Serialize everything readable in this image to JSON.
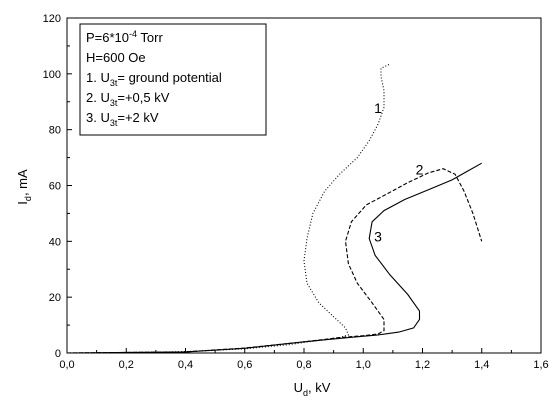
{
  "chart_data": {
    "type": "line",
    "xlabel_main": "U",
    "xlabel_sub": "d",
    "xlabel_unit": ", kV",
    "ylabel_main": "I",
    "ylabel_sub": "d",
    "ylabel_unit": ", mA",
    "xlim": [
      0,
      1.6
    ],
    "ylim": [
      0,
      120
    ],
    "x_ticks": [
      "0,0",
      "0,2",
      "0,4",
      "0,6",
      "0,8",
      "1,0",
      "1,2",
      "1,4",
      "1,6"
    ],
    "x_tick_values": [
      0,
      0.2,
      0.4,
      0.6,
      0.8,
      1.0,
      1.2,
      1.4,
      1.6
    ],
    "y_ticks": [
      "0",
      "20",
      "40",
      "60",
      "80",
      "100",
      "120"
    ],
    "y_tick_values": [
      0,
      20,
      40,
      60,
      80,
      100,
      120
    ],
    "grid": false,
    "legend_position": "top-left",
    "legend": {
      "line1_prefix": "P=6*10",
      "line1_exp": "-4",
      "line1_suffix": " Torr",
      "line2": "H=600 Oe",
      "line3_prefix": "1. U",
      "line3_sub": "3t",
      "line3_suffix": "= ground potential",
      "line4_prefix": "2. U",
      "line4_sub": "3t",
      "line4_suffix": "=+0,5 kV",
      "line5_prefix": "3. U",
      "line5_sub": "3t",
      "line5_suffix": "=+2 kV"
    },
    "series": [
      {
        "label": "1",
        "label_at": [
          1.05,
          86
        ],
        "style": "dotted",
        "points": [
          [
            0.0,
            0
          ],
          [
            0.2,
            0.1
          ],
          [
            0.4,
            0.5
          ],
          [
            0.6,
            1.5
          ],
          [
            0.75,
            3
          ],
          [
            0.85,
            4.5
          ],
          [
            0.92,
            5.5
          ],
          [
            0.95,
            6.5
          ],
          [
            0.94,
            9
          ],
          [
            0.9,
            13
          ],
          [
            0.85,
            18
          ],
          [
            0.81,
            25
          ],
          [
            0.8,
            33
          ],
          [
            0.81,
            41
          ],
          [
            0.83,
            50
          ],
          [
            0.87,
            58
          ],
          [
            0.92,
            64
          ],
          [
            0.98,
            70
          ],
          [
            1.02,
            76
          ],
          [
            1.05,
            82
          ],
          [
            1.07,
            88
          ],
          [
            1.07,
            94
          ],
          [
            1.06,
            99
          ],
          [
            1.06,
            102
          ],
          [
            1.09,
            103.5
          ]
        ]
      },
      {
        "label": "2",
        "label_at": [
          1.19,
          64
        ],
        "style": "dashed",
        "points": [
          [
            0.0,
            0
          ],
          [
            0.4,
            0.4
          ],
          [
            0.6,
            1.8
          ],
          [
            0.8,
            4
          ],
          [
            0.92,
            5.5
          ],
          [
            1.0,
            6.2
          ],
          [
            1.05,
            6.8
          ],
          [
            1.07,
            8
          ],
          [
            1.07,
            12
          ],
          [
            1.03,
            18
          ],
          [
            0.98,
            25
          ],
          [
            0.95,
            32
          ],
          [
            0.94,
            40
          ],
          [
            0.96,
            47
          ],
          [
            1.01,
            53
          ],
          [
            1.08,
            57
          ],
          [
            1.15,
            61
          ],
          [
            1.22,
            64.5
          ],
          [
            1.27,
            66
          ],
          [
            1.31,
            64
          ],
          [
            1.34,
            58
          ],
          [
            1.37,
            50
          ],
          [
            1.4,
            40
          ]
        ]
      },
      {
        "label": "3",
        "label_at": [
          1.05,
          40
        ],
        "style": "solid",
        "points": [
          [
            0.0,
            0
          ],
          [
            0.4,
            0.4
          ],
          [
            0.6,
            1.7
          ],
          [
            0.8,
            4
          ],
          [
            0.95,
            5.5
          ],
          [
            1.05,
            6.5
          ],
          [
            1.12,
            7.5
          ],
          [
            1.17,
            9
          ],
          [
            1.19,
            12
          ],
          [
            1.19,
            15
          ],
          [
            1.15,
            21
          ],
          [
            1.09,
            28
          ],
          [
            1.04,
            35
          ],
          [
            1.02,
            41
          ],
          [
            1.03,
            47
          ],
          [
            1.07,
            51
          ],
          [
            1.14,
            55
          ],
          [
            1.22,
            58.5
          ],
          [
            1.3,
            62
          ],
          [
            1.35,
            65
          ],
          [
            1.4,
            68
          ]
        ]
      }
    ]
  }
}
